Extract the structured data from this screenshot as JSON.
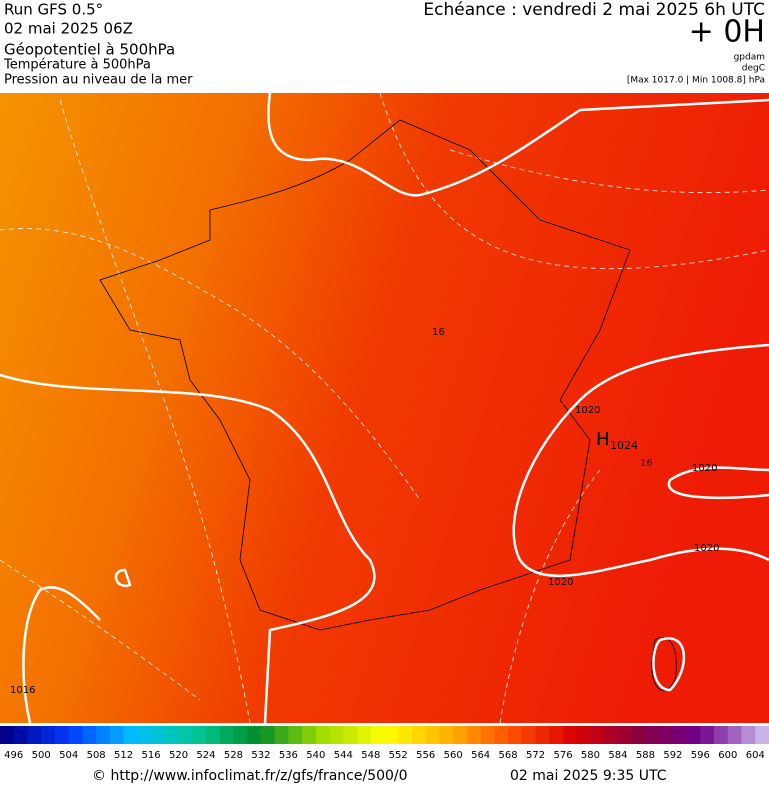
{
  "header": {
    "left": [
      "Run GFS 0.5°",
      "02 mai 2025 06Z",
      "Géopotentiel à 500hPa",
      "Température à 500hPa",
      "Pression au niveau de la mer"
    ],
    "right": {
      "valid": "Echéance : vendredi 2 mai 2025 6h UTC",
      "lead": "+ 0H",
      "unit1": "gpdam",
      "unit2": "degC",
      "range": "[Max 1017.0 | Min 1008.8] hPa"
    }
  },
  "map": {
    "high": {
      "letter": "H",
      "value": "1024"
    },
    "isobar_labels": [
      "1020",
      "1020",
      "1020",
      "1020",
      "1016"
    ],
    "isotherm_labels": [
      "16",
      "16"
    ]
  },
  "colorbar": {
    "labels": [
      "496",
      "500",
      "504",
      "508",
      "512",
      "516",
      "520",
      "524",
      "528",
      "532",
      "536",
      "540",
      "544",
      "548",
      "552",
      "556",
      "560",
      "564",
      "568",
      "572",
      "576",
      "580",
      "584",
      "588",
      "592",
      "596",
      "600",
      "604"
    ]
  },
  "footer": {
    "source": "© http://www.infoclimat.fr/z/gfs/france/500/0",
    "issued": "02 mai 2025  9:35 UTC"
  }
}
